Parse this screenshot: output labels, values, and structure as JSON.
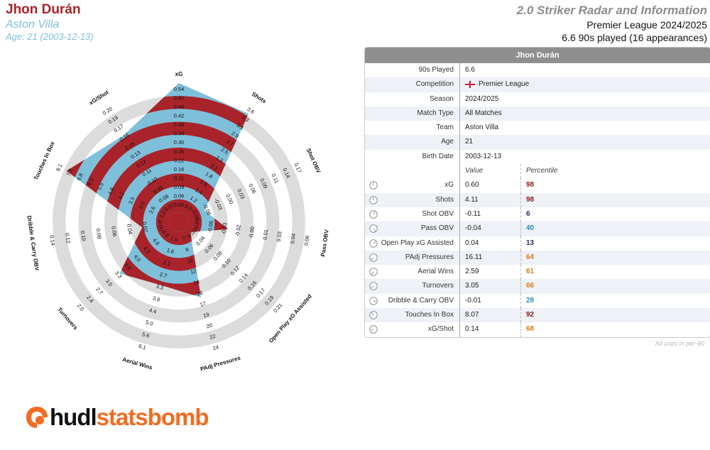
{
  "header": {
    "player": "Jhon Durán",
    "team": "Aston Villa",
    "age": "Age: 21 (2003-12-13)",
    "report_title": "2.0 Striker Radar and Information",
    "league_season": "Premier League 2024/2025",
    "played": "6.6 90s played (16 appearances)"
  },
  "colors": {
    "player_red": "#a8232a",
    "team_blue": "#7ec0da",
    "ring_gray": "#dcdcdc"
  },
  "table": {
    "head": "Jhon Durán",
    "info_rows": [
      {
        "label": "90s Played",
        "value": "6.6"
      },
      {
        "label": "Competition",
        "value": "Premier League",
        "icon": "england-flag-icon"
      },
      {
        "label": "Season",
        "value": "2024/2025"
      },
      {
        "label": "Match Type",
        "value": "All Matches"
      },
      {
        "label": "Team",
        "value": "Aston Villa"
      },
      {
        "label": "Age",
        "value": "21"
      },
      {
        "label": "Birth Date",
        "value": "2003-12-13"
      }
    ],
    "col_value": "Value",
    "col_percentile": "Percentile",
    "metric_rows": [
      {
        "label": "xG",
        "value": "0.60",
        "percentile": 98,
        "color": "#8b1a1a"
      },
      {
        "label": "Shots",
        "value": "4.11",
        "percentile": 98,
        "color": "#8b1a1a"
      },
      {
        "label": "Shot OBV",
        "value": "-0.11",
        "percentile": 6,
        "color": "#1f2f6b"
      },
      {
        "label": "Pass OBV",
        "value": "-0.04",
        "percentile": 40,
        "color": "#2a8fb5"
      },
      {
        "label": "Open Play xG Assisted",
        "value": "0.04",
        "percentile": 13,
        "color": "#1f2f6b"
      },
      {
        "label": "PAdj Pressures",
        "value": "16.11",
        "percentile": 64,
        "color": "#e07b16"
      },
      {
        "label": "Aerial Wins",
        "value": "2.59",
        "percentile": 61,
        "color": "#e07b16"
      },
      {
        "label": "Turnovers",
        "value": "3.05",
        "percentile": 66,
        "color": "#e07b16"
      },
      {
        "label": "Dribble & Carry OBV",
        "value": "-0.01",
        "percentile": 28,
        "color": "#2a8fb5"
      },
      {
        "label": "Touches In Box",
        "value": "8.07",
        "percentile": 92,
        "color": "#8b1a1a"
      },
      {
        "label": "xG/Shot",
        "value": "0.14",
        "percentile": 68,
        "color": "#e07b16"
      }
    ],
    "footnote": "All units in per-90"
  },
  "chart_data": {
    "type": "radar",
    "rings": 10,
    "metrics": [
      {
        "name": "xG",
        "value": 0.6,
        "ticks": [
          "0.00",
          "0.06",
          "0.09",
          "0.11",
          "0.16",
          "0.22",
          "0.26",
          "0.30",
          "0.34",
          "0.38",
          "0.42",
          "0.46",
          "0.50",
          "0.54"
        ]
      },
      {
        "name": "Shots",
        "value": 4.11,
        "ticks": [
          "0.9",
          "1.2",
          "1.4",
          "1.6",
          "1.8",
          "2.1",
          "2.3",
          "2.5",
          "2.7",
          "2.9",
          "3.1",
          "3.3",
          "3.6"
        ]
      },
      {
        "name": "Shot OBV",
        "value": -0.11,
        "ticks": [
          "-0.08",
          "-0.06",
          "-0.03",
          "0.00",
          "0.03",
          "0.06",
          "0.09",
          "0.11",
          "0.14",
          "0.17"
        ]
      },
      {
        "name": "Pass OBV",
        "value": -0.04,
        "ticks": [
          "-0.07",
          "-0.05",
          "-0.03",
          "-0.02",
          "-0.00",
          "0.01",
          "0.03",
          "0.04",
          "0.06"
        ]
      },
      {
        "name": "Open Play xG Assisted",
        "value": 0.04,
        "ticks": [
          "0.02",
          "0.04",
          "0.06",
          "0.08",
          "0.10",
          "0.12",
          "0.14",
          "0.16",
          "0.17",
          "0.19",
          "0.21"
        ]
      },
      {
        "name": "PAdj Pressures",
        "value": 16.11,
        "ticks": [
          "7",
          "9",
          "11",
          "12",
          "14",
          "16",
          "17",
          "19",
          "20",
          "22",
          "24"
        ]
      },
      {
        "name": "Aerial Wins",
        "value": 2.59,
        "ticks": [
          "1.0",
          "1.6",
          "2.1",
          "2.7",
          "3.3",
          "3.8",
          "4.4",
          "5.0",
          "5.6",
          "6.1"
        ]
      },
      {
        "name": "Turnovers",
        "value": 3.05,
        "ticks": [
          "4.9",
          "4.6",
          "4.3",
          "4.0",
          "3.6",
          "3.3",
          "3.0",
          "2.7",
          "2.4",
          "2.0"
        ]
      },
      {
        "name": "Dribble & Carry OBV",
        "value": -0.01,
        "ticks": [
          "-0.00",
          "0.02",
          "0.04",
          "0.06",
          "0.08",
          "0.10",
          "0.12",
          "0.14"
        ]
      },
      {
        "name": "Touches In Box",
        "value": 8.07,
        "ticks": [
          "2.2",
          "2.6",
          "3.0",
          "3.5",
          "4.1",
          "4.8",
          "5.5",
          "6.1",
          "6.8",
          "7.5",
          "8.1"
        ]
      },
      {
        "name": "xG/Shot",
        "value": 0.14,
        "ticks": [
          "0.07",
          "0.08",
          "0.09",
          "0.10",
          "0.11",
          "0.12",
          "0.13",
          "0.15",
          "0.16",
          "0.17",
          "0.19",
          "0.20"
        ]
      }
    ],
    "fraction": [
      1.0,
      0.92,
      0.14,
      0.31,
      0.04,
      0.53,
      0.43,
      0.53,
      0.21,
      0.88,
      0.72
    ]
  },
  "logo": {
    "part_a": "hudl",
    "part_b": "statsbomb"
  }
}
